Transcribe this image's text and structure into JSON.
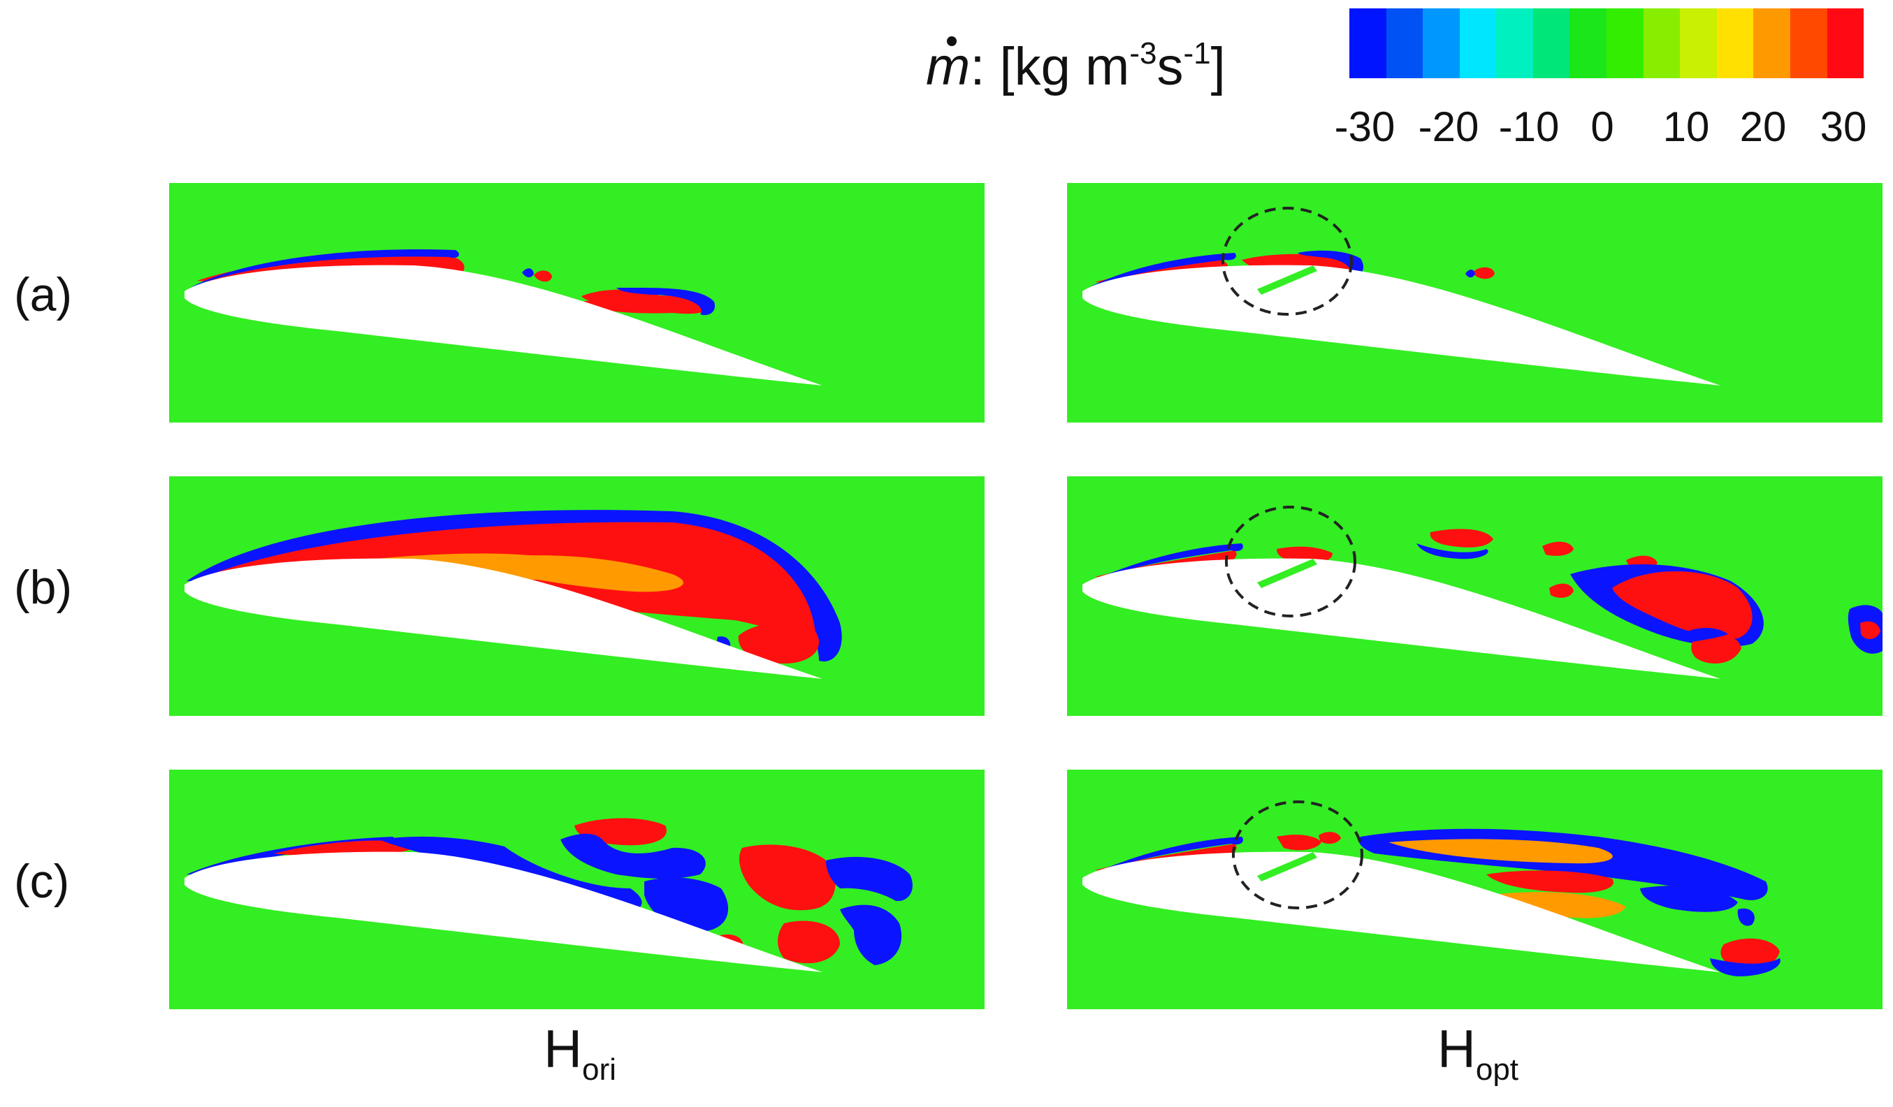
{
  "colorbar": {
    "title_symbol": "m",
    "title_rest": ": [kg m",
    "exp1": "-3",
    "unit2": "s",
    "exp2": "-1",
    "title_end": "]",
    "colors": [
      "#0014ff",
      "#0052f5",
      "#0098ff",
      "#00e6ff",
      "#00f0c0",
      "#00e678",
      "#1ae61a",
      "#33ee00",
      "#88ee00",
      "#c8f000",
      "#ffe000",
      "#ff9900",
      "#ff4800",
      "#ff0a14"
    ],
    "tick_labels": [
      "-30",
      "-20",
      "-10",
      "0",
      "10",
      "20",
      "30"
    ]
  },
  "rows": [
    {
      "label": "(a)"
    },
    {
      "label": "(b)"
    },
    {
      "label": "(c)"
    }
  ],
  "columns": [
    {
      "base": "H",
      "sub": "ori"
    },
    {
      "base": "H",
      "sub": "opt"
    }
  ],
  "field_colors": {
    "background": "#33ee22",
    "positive": "#ff1010",
    "negative": "#0a14ff",
    "airfoil": "#ffffff"
  }
}
